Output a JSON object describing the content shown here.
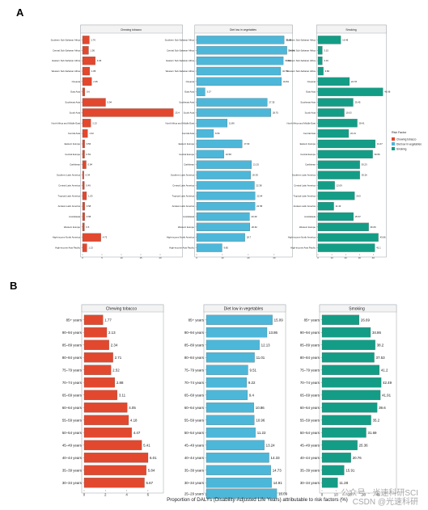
{
  "panel_a_label": "A",
  "panel_b_label": "B",
  "colors": {
    "chewing": "#e2482e",
    "diet": "#4cb7d9",
    "smoking": "#139d86",
    "frame": "#9aa0a6"
  },
  "legend": {
    "title": "Risk Factor",
    "items": [
      "Chewing tobacco",
      "Diet low in vegetables",
      "Smoking"
    ]
  },
  "x_axis_label": "Proportion of DALYs (Disability-Adjusted Life Years) attributable to risk factors (%)",
  "watermark": {
    "line1": "公众号 · 光速科研SCI",
    "line2": "CSDN @光速科研"
  },
  "chart_data": [
    {
      "panel": "A",
      "type": "bar",
      "orientation": "horizontal",
      "categories": [
        "Southern Sub-Saharan Africa",
        "Central Sub-Saharan Africa",
        "Eastern Sub-Saharan Africa",
        "Western Sub-Saharan Africa",
        "Oceania",
        "East Asia",
        "Southeast Asia",
        "South Asia",
        "North Africa and Middle East",
        "Central Asia",
        "Eastern Europe",
        "Central Europe",
        "Caribbean",
        "Southern Latin America",
        "Central Latin America",
        "Tropical Latin America",
        "Andean Latin America",
        "Australasia",
        "Western Europe",
        "High-income North America",
        "High-income Asia Pacific"
      ],
      "series": [
        {
          "name": "Chewing tobacco",
          "xlim": [
            0,
            25
          ],
          "ticks": [
            0,
            5,
            10,
            15,
            20
          ],
          "values": [
            1.76,
            1.56,
            3.29,
            1.85,
            2.35,
            0.6,
            5.94,
            23.4,
            2.13,
            1.32,
            0.56,
            0.53,
            0.94,
            0.34,
            0.49,
            1.03,
            0.58,
            0.58,
            0.5,
            4.73,
            1.13
          ]
        },
        {
          "name": "Diet low in vegetables",
          "xlim": [
            0,
            36
          ],
          "ticks": [
            0,
            10,
            20,
            30
          ],
          "values": [
            33.88,
            34.94,
            33.53,
            32.55,
            32.84,
            3.27,
            27.35,
            28.75,
            11.86,
            6.56,
            17.63,
            10.58,
            21.25,
            20.93,
            22.38,
            22.64,
            22.58,
            20.49,
            20.62,
            18.7,
            9.85
          ]
        },
        {
          "name": "Smoking",
          "xlim": [
            0,
            48
          ],
          "ticks": [
            0,
            10,
            20,
            30,
            40
          ],
          "values": [
            16.48,
            3.15,
            3.16,
            3.86,
            22.78,
            46.98,
            25.45,
            19.03,
            28.41,
            22.21,
            41.47,
            39.56,
            30.23,
            30.26,
            12.09,
            26.5,
            11.43,
            25.67,
            36.66,
            43.66,
            41.1
          ]
        }
      ]
    },
    {
      "panel": "B",
      "type": "bar",
      "orientation": "horizontal",
      "categories": [
        "85+ years",
        "90–94 years",
        "85–89 years",
        "80–84 years",
        "75–79 years",
        "70–74 years",
        "65–69 years",
        "60–64 years",
        "55–59 years",
        "50–54 years",
        "45–49 years",
        "40–44 years",
        "35–39 years",
        "30–34 years"
      ],
      "series": [
        {
          "name": "Chewing tobacco",
          "xlim": [
            0,
            7
          ],
          "ticks": [
            0,
            2,
            4,
            6
          ],
          "values": [
            1.77,
            2.13,
            2.34,
            2.71,
            2.52,
            2.88,
            3.11,
            4.05,
            4.18,
            4.47,
            5.41,
            6.01,
            5.84,
            5.67
          ]
        },
        {
          "name": "Diet low in vegetables",
          "xlim": [
            0,
            17
          ],
          "ticks": [
            0,
            5,
            10,
            15
          ],
          "values": [
            15.09,
            13.86,
            12.13,
            11.01,
            9.51,
            9.22,
            9.4,
            10.86,
            10.96,
            11.22,
            13.24,
            14.33,
            14.73,
            14.91
          ]
        },
        {
          "name": "Smoking",
          "xlim": [
            0,
            50
          ],
          "ticks": [
            0,
            10,
            20,
            30,
            40
          ],
          "values": [
            26.69,
            34.86,
            38.2,
            37.53,
            41.2,
            42.49,
            41.91,
            39.6,
            35.2,
            31.69,
            25.36,
            20.76,
            15.91,
            11.28
          ]
        }
      ],
      "extra_bars": [
        {
          "series": "Diet low in vegetables",
          "category": "25–29 years",
          "value": 16.09
        }
      ]
    }
  ]
}
